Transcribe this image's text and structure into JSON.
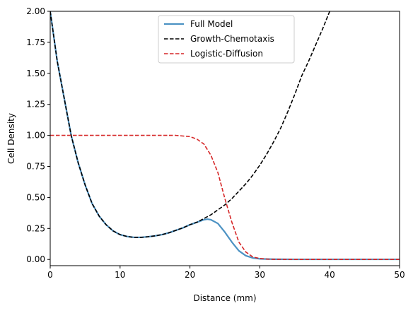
{
  "chart_data": {
    "type": "line",
    "title": "",
    "xlabel": "Distance (mm)",
    "ylabel": "Cell Density",
    "xlim": [
      0,
      50
    ],
    "ylim": [
      -0.05,
      2.0
    ],
    "xticks": [
      0,
      10,
      20,
      30,
      40,
      50
    ],
    "xtick_labels": [
      "0",
      "10",
      "20",
      "30",
      "40",
      "50"
    ],
    "yticks": [
      0.0,
      0.25,
      0.5,
      0.75,
      1.0,
      1.25,
      1.5,
      1.75,
      2.0
    ],
    "ytick_labels": [
      "0.00",
      "0.25",
      "0.50",
      "0.75",
      "1.00",
      "1.25",
      "1.50",
      "1.75",
      "2.00"
    ],
    "grid": false,
    "legend_position": "upper-center",
    "series": [
      {
        "name": "Full Model",
        "color": "#1f77b4",
        "style": "solid",
        "x": [
          0,
          1,
          2,
          3,
          4,
          5,
          6,
          7,
          8,
          9,
          10,
          11,
          12,
          13,
          14,
          15,
          16,
          17,
          18,
          19,
          20,
          21,
          22,
          22.5,
          23,
          24,
          25,
          26,
          27,
          28,
          29,
          30,
          32,
          35,
          40,
          45,
          50
        ],
        "y": [
          2.0,
          1.6,
          1.3,
          1.0,
          0.78,
          0.6,
          0.45,
          0.35,
          0.28,
          0.23,
          0.2,
          0.185,
          0.178,
          0.178,
          0.183,
          0.19,
          0.2,
          0.215,
          0.235,
          0.255,
          0.28,
          0.3,
          0.32,
          0.325,
          0.32,
          0.29,
          0.22,
          0.14,
          0.07,
          0.03,
          0.012,
          0.005,
          0.002,
          0.001,
          0.001,
          0.001,
          0.001
        ]
      },
      {
        "name": "Growth-Chemotaxis",
        "color": "#000000",
        "style": "dashed",
        "x": [
          0,
          1,
          2,
          3,
          4,
          5,
          6,
          7,
          8,
          9,
          10,
          11,
          12,
          13,
          14,
          15,
          16,
          17,
          18,
          19,
          20,
          21,
          22,
          23,
          24,
          25,
          26,
          27,
          28,
          29,
          30,
          31,
          32,
          33,
          34,
          35,
          36,
          37,
          38,
          39,
          40
        ],
        "y": [
          2.0,
          1.6,
          1.3,
          1.0,
          0.78,
          0.6,
          0.45,
          0.35,
          0.28,
          0.23,
          0.2,
          0.185,
          0.178,
          0.178,
          0.183,
          0.19,
          0.2,
          0.215,
          0.235,
          0.255,
          0.28,
          0.3,
          0.33,
          0.36,
          0.4,
          0.44,
          0.49,
          0.55,
          0.61,
          0.68,
          0.76,
          0.85,
          0.95,
          1.06,
          1.19,
          1.33,
          1.48,
          1.6,
          1.73,
          1.86,
          2.0
        ]
      },
      {
        "name": "Logistic-Diffusion",
        "color": "#d62728",
        "style": "dashed",
        "x": [
          0,
          5,
          10,
          15,
          18,
          19,
          20,
          21,
          22,
          23,
          24,
          25,
          26,
          27,
          28,
          29,
          30,
          31,
          32,
          35,
          40,
          45,
          50
        ],
        "y": [
          1.0,
          1.0,
          1.0,
          1.0,
          1.0,
          0.995,
          0.99,
          0.97,
          0.93,
          0.84,
          0.7,
          0.49,
          0.3,
          0.14,
          0.06,
          0.02,
          0.008,
          0.003,
          0.001,
          0.0,
          0.0,
          0.0,
          0.0
        ]
      }
    ]
  }
}
